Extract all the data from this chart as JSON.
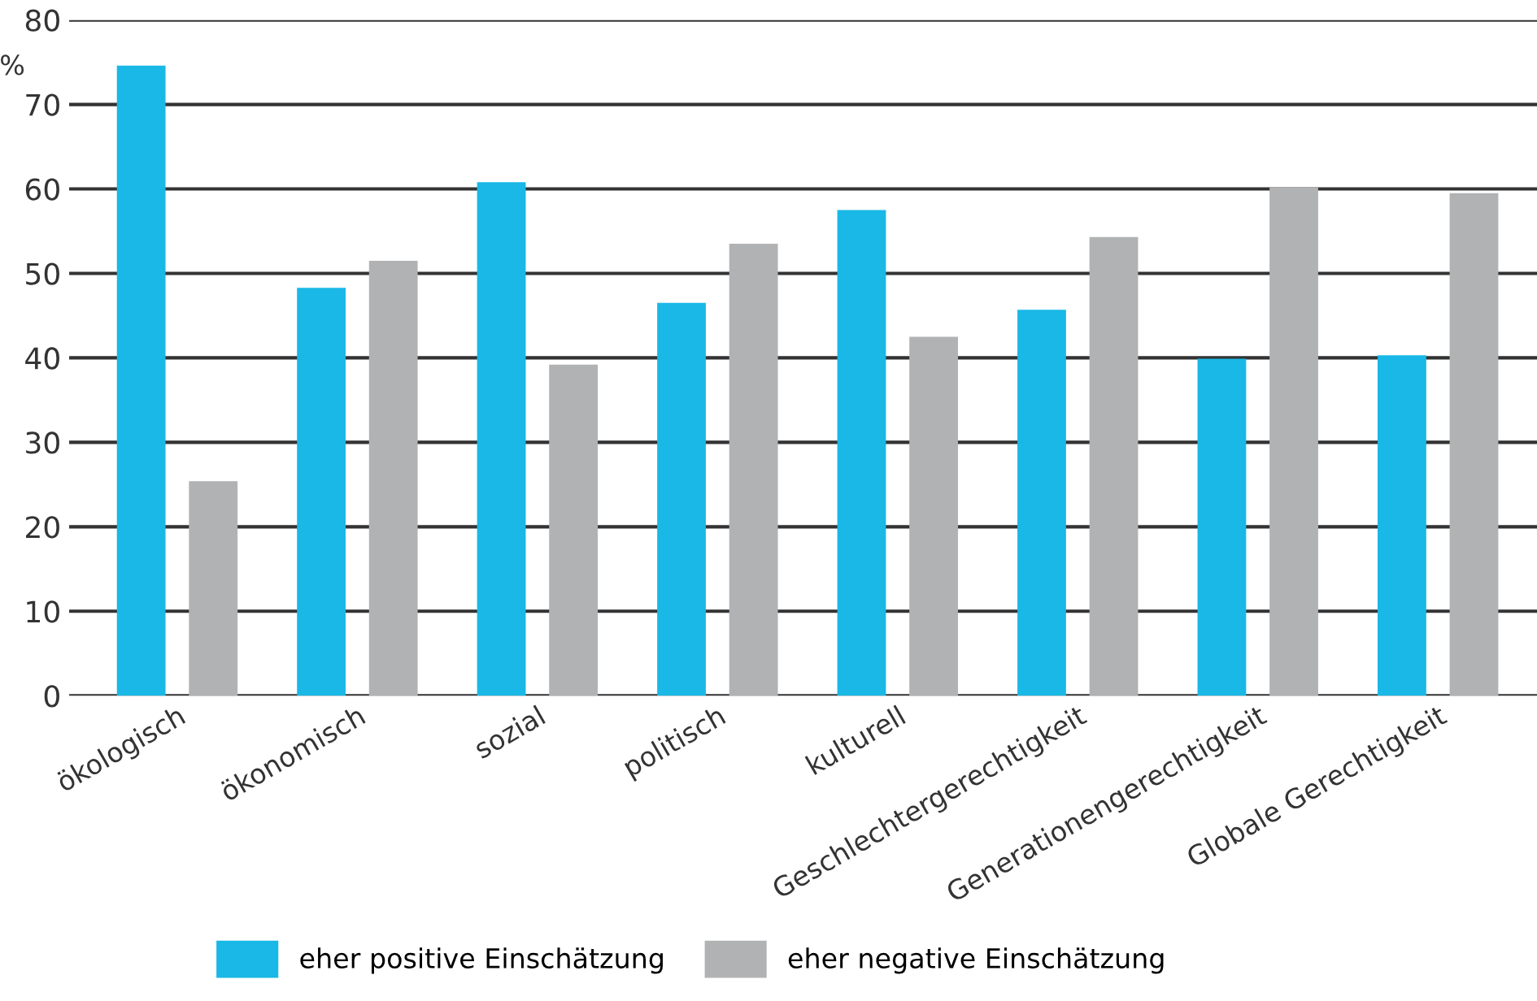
{
  "chart_data": {
    "type": "bar",
    "ylabel": "%",
    "categories": [
      "ökologisch",
      "ökonomisch",
      "sozial",
      "politisch",
      "kulturell",
      "Geschlechtergerechtigkeit",
      "Generationengerechtigkeit",
      "Globale Gerechtigkeit"
    ],
    "series": [
      {
        "name": "eher positive Einschätzung",
        "color": "#19b8e6",
        "values": [
          74.6,
          48.3,
          60.8,
          46.5,
          57.5,
          45.7,
          39.9,
          40.3
        ]
      },
      {
        "name": "eher negative Einschätzung",
        "color": "#b1b2b4",
        "values": [
          25.4,
          51.5,
          39.2,
          53.5,
          42.5,
          54.3,
          60.2,
          59.5
        ]
      }
    ],
    "ylim": [
      0,
      80
    ],
    "yticks": [
      0,
      10,
      20,
      30,
      40,
      50,
      60,
      70,
      80
    ],
    "grid": "y",
    "legend": "bottom"
  }
}
